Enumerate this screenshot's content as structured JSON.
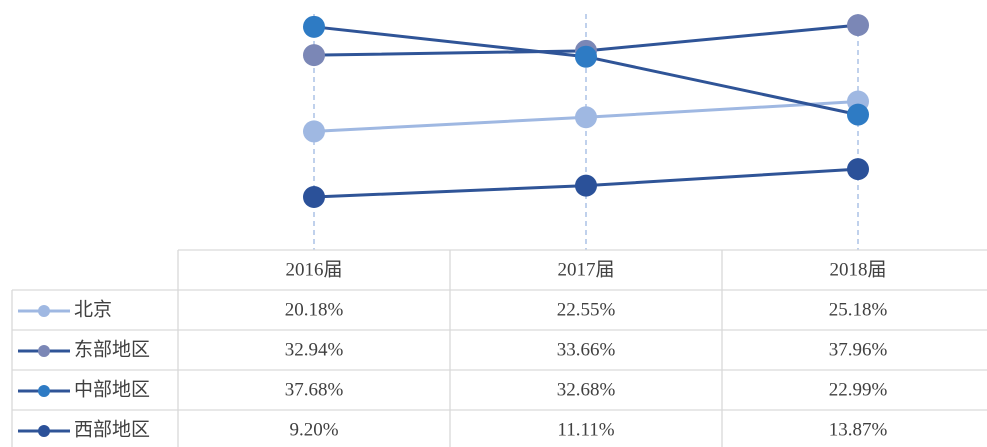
{
  "chart_data": {
    "type": "line",
    "categories": [
      "2016届",
      "2017届",
      "2018届"
    ],
    "ylim": [
      0,
      42
    ],
    "series": [
      {
        "name": "北京",
        "color": "#9fb8e2",
        "line_color": "#9fb8e2",
        "values": [
          20.18,
          22.55,
          25.18
        ],
        "value_labels": [
          "20.18%",
          "22.55%",
          "25.18%"
        ]
      },
      {
        "name": "东部地区",
        "color": "#7b87b6",
        "line_color": "#2f5497",
        "values": [
          32.94,
          33.66,
          37.96
        ],
        "value_labels": [
          "32.94%",
          "33.66%",
          "37.96%"
        ]
      },
      {
        "name": "中部地区",
        "color": "#2e7bc4",
        "line_color": "#2f5497",
        "values": [
          37.68,
          32.68,
          22.99
        ],
        "value_labels": [
          "37.68%",
          "32.68%",
          "22.99%"
        ]
      },
      {
        "name": "西部地区",
        "color": "#2b5199",
        "line_color": "#2f5497",
        "values": [
          9.2,
          11.11,
          13.87
        ],
        "value_labels": [
          "9.20%",
          "11.11%",
          "13.87%"
        ]
      }
    ]
  }
}
